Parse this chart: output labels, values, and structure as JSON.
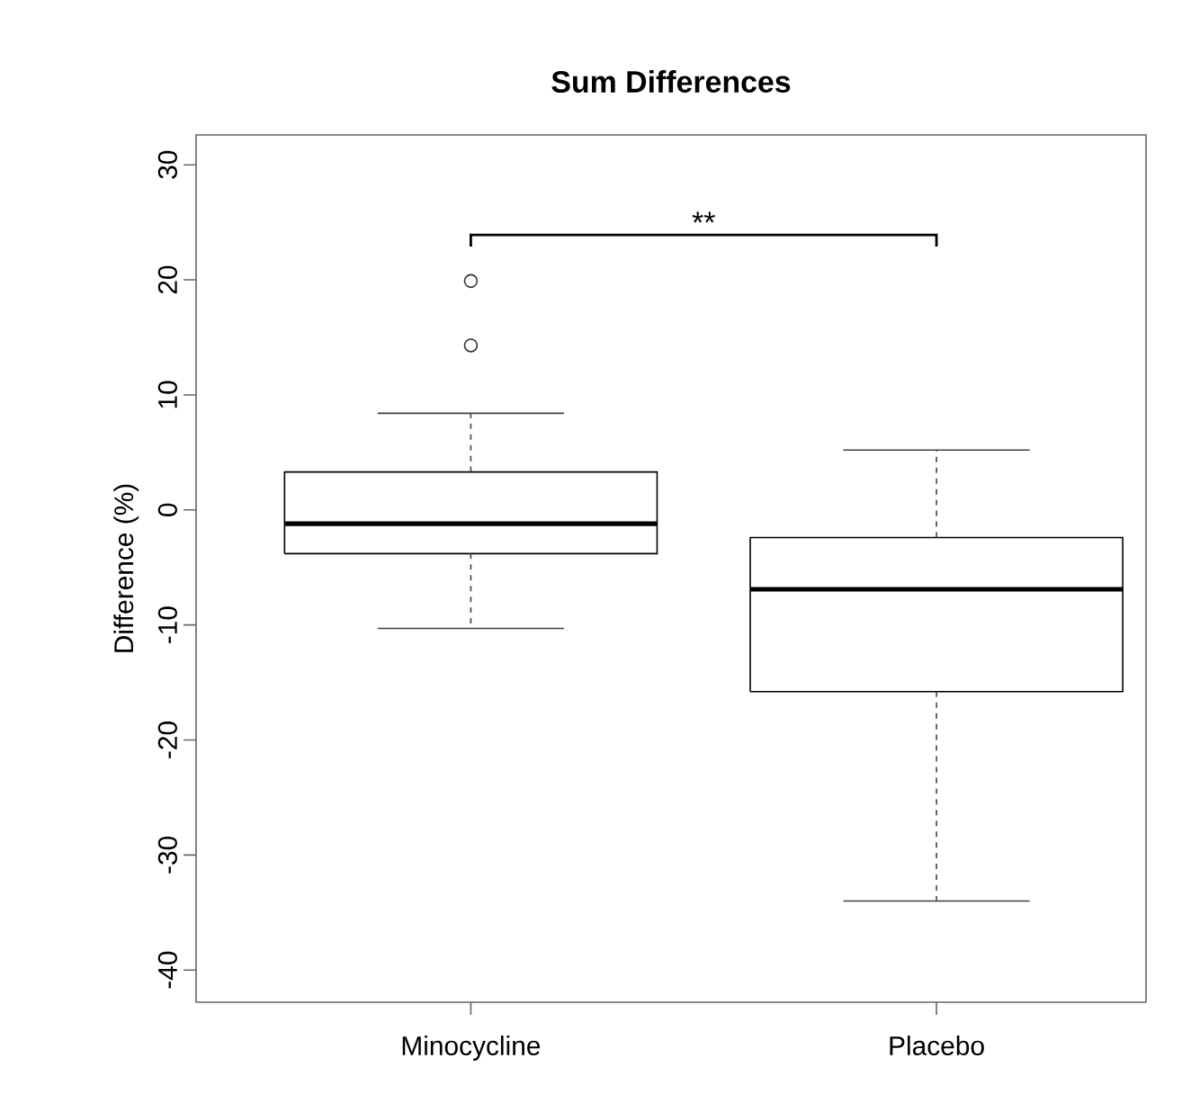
{
  "chart_data": {
    "type": "box",
    "title": "Sum Differences",
    "ylabel": "Difference  (%)",
    "categories": [
      "Minocycline",
      "Placebo"
    ],
    "boxes": [
      {
        "low": -10.3,
        "q1": -3.8,
        "median": -1.2,
        "q3": 3.3,
        "high": 8.4,
        "outliers": [
          19.9,
          14.3
        ]
      },
      {
        "low": -34.0,
        "q1": -15.8,
        "median": -6.9,
        "q3": -2.4,
        "high": 5.2
      }
    ],
    "ylim": [
      -42.8,
      32.6
    ],
    "yticks": [
      -40,
      -30,
      -20,
      -10,
      0,
      10,
      20,
      30
    ],
    "annotations": [
      "**"
    ]
  }
}
